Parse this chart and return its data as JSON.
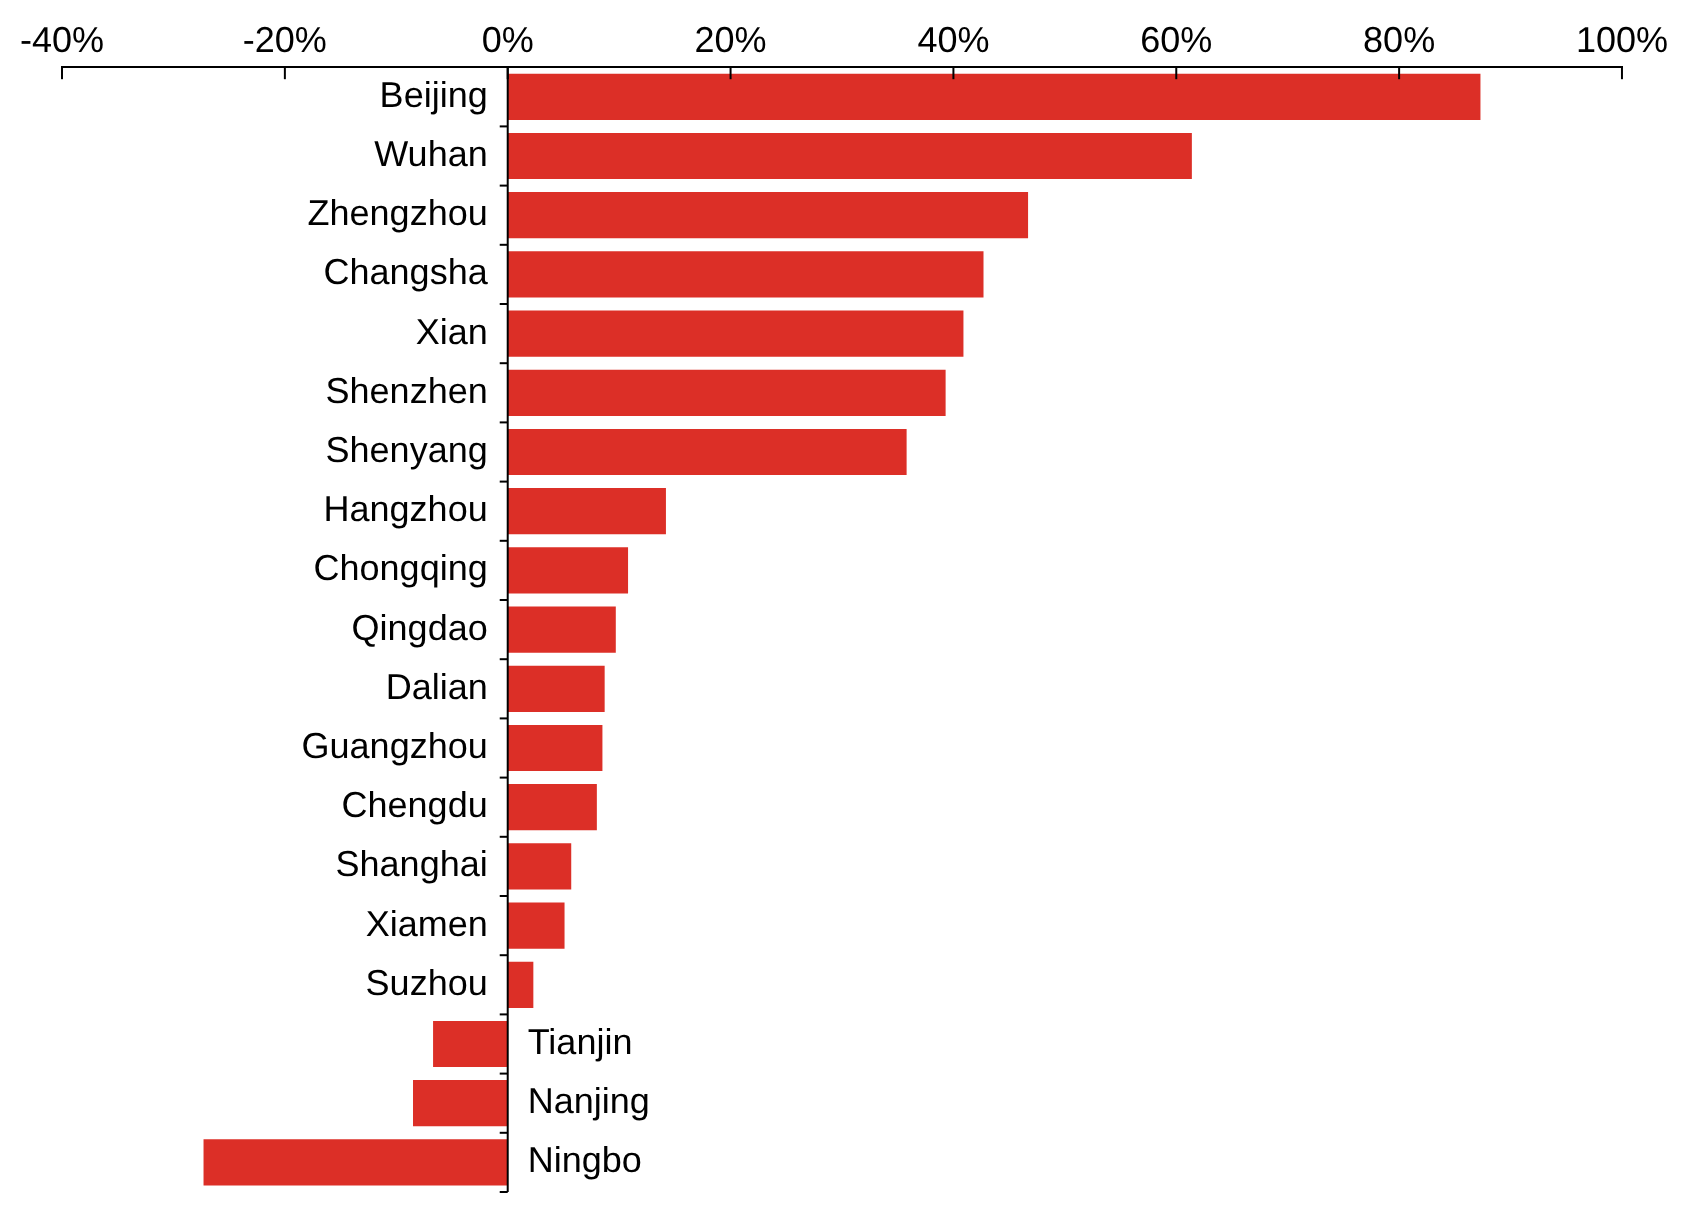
{
  "chart_data": {
    "type": "bar",
    "orientation": "horizontal",
    "categories": [
      "Beijing",
      "Wuhan",
      "Zhengzhou",
      "Changsha",
      "Xian",
      "Shenzhen",
      "Shenyang",
      "Hangzhou",
      "Chongqing",
      "Qingdao",
      "Dalian",
      "Guangzhou",
      "Chengdu",
      "Shanghai",
      "Xiamen",
      "Suzhou",
      "Tianjin",
      "Nanjing",
      "Ningbo"
    ],
    "values": [
      87.3,
      61.4,
      46.7,
      42.7,
      40.9,
      39.3,
      35.8,
      14.2,
      10.8,
      9.7,
      8.7,
      8.5,
      8.0,
      5.7,
      5.1,
      2.3,
      -6.7,
      -8.5,
      -27.3
    ],
    "color": "#dc2f27",
    "xlim": [
      -40,
      100
    ],
    "xticks": [
      {
        "value": -40,
        "label": "-40%"
      },
      {
        "value": -20,
        "label": "-20%"
      },
      {
        "value": 0,
        "label": "0%"
      },
      {
        "value": 20,
        "label": "20%"
      },
      {
        "value": 40,
        "label": "40%"
      },
      {
        "value": 60,
        "label": "60%"
      },
      {
        "value": 80,
        "label": "80%"
      },
      {
        "value": 100,
        "label": "100%"
      }
    ],
    "grid": false,
    "legend": false
  }
}
